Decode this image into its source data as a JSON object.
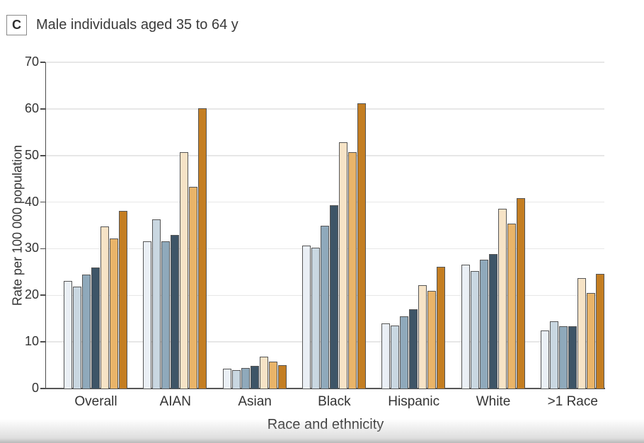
{
  "panel": {
    "label": "C",
    "title": "Male individuals aged 35 to 64 y"
  },
  "chart_data": {
    "type": "bar",
    "title": "Male individuals aged 35 to 64 y",
    "xlabel": "Race and ethnicity",
    "ylabel": "Rate per 100 000 population",
    "ylim": [
      0,
      70
    ],
    "yticks": [
      0,
      10,
      20,
      30,
      40,
      50,
      60,
      70
    ],
    "grid": "horizontal",
    "legend": "none",
    "categories": [
      "Overall",
      "AIAN",
      "Asian",
      "Black",
      "Hispanic",
      "White",
      ">1 Race"
    ],
    "series": [
      {
        "name": "bar-1",
        "color": "#eaeff5",
        "values": [
          23.1,
          31.6,
          4.3,
          30.7,
          13.9,
          26.6,
          12.5
        ]
      },
      {
        "name": "bar-2",
        "color": "#c9d7e1",
        "values": [
          21.9,
          36.3,
          4.0,
          30.2,
          13.5,
          25.2,
          14.4
        ]
      },
      {
        "name": "bar-3",
        "color": "#8fa9bb",
        "values": [
          24.4,
          31.6,
          4.4,
          34.9,
          15.5,
          27.6,
          13.4
        ]
      },
      {
        "name": "bar-4",
        "color": "#3e5567",
        "values": [
          25.9,
          32.9,
          4.8,
          39.4,
          17.0,
          28.8,
          13.4
        ]
      },
      {
        "name": "bar-5",
        "color": "#f6e3c6",
        "values": [
          34.7,
          50.7,
          6.9,
          52.9,
          22.1,
          38.6,
          23.7
        ]
      },
      {
        "name": "bar-6",
        "color": "#e9b469",
        "values": [
          32.2,
          43.2,
          5.8,
          50.7,
          21.0,
          35.4,
          20.5
        ]
      },
      {
        "name": "bar-7",
        "color": "#c47e22",
        "values": [
          38.1,
          60.1,
          5.0,
          61.2,
          26.1,
          40.9,
          24.6
        ]
      }
    ],
    "colors": {
      "axis": "#4d4d4d",
      "gridline": "#e7e7e7",
      "bar_border": "#565656",
      "text": "#333333"
    }
  }
}
